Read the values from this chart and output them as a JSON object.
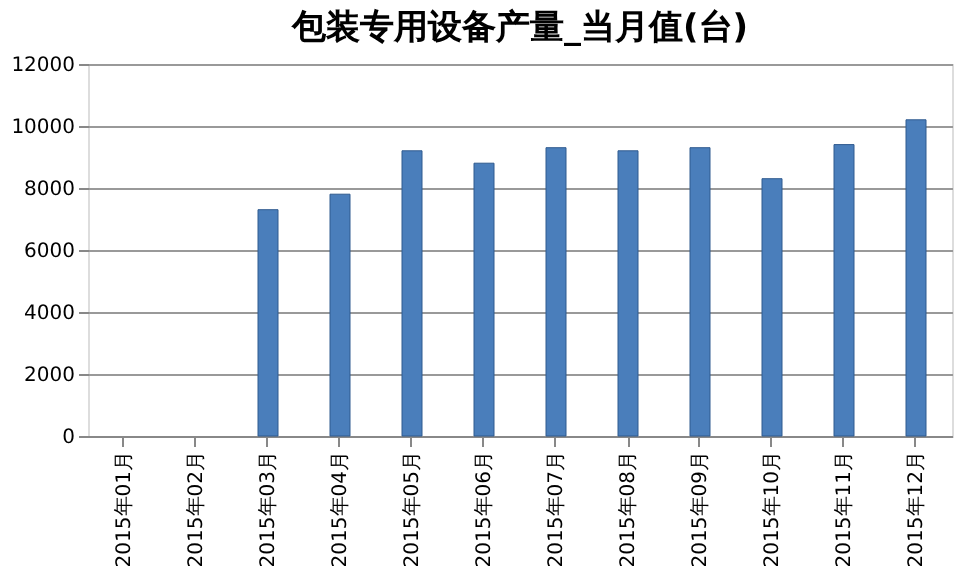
{
  "chart_data": {
    "type": "bar",
    "title": "包装专用设备产量_当月值(台)",
    "categories": [
      "2015年01月",
      "2015年02月",
      "2015年03月",
      "2015年04月",
      "2015年05月",
      "2015年06月",
      "2015年07月",
      "2015年08月",
      "2015年09月",
      "2015年10月",
      "2015年11月",
      "2015年12月"
    ],
    "values": [
      null,
      null,
      7300,
      7800,
      9200,
      8800,
      9300,
      9200,
      9300,
      8300,
      9400,
      10200
    ],
    "color": "#4a7ebb",
    "ylim": [
      0,
      12000
    ],
    "yticks": [
      0,
      2000,
      4000,
      6000,
      8000,
      10000,
      12000
    ],
    "grid": "y"
  }
}
